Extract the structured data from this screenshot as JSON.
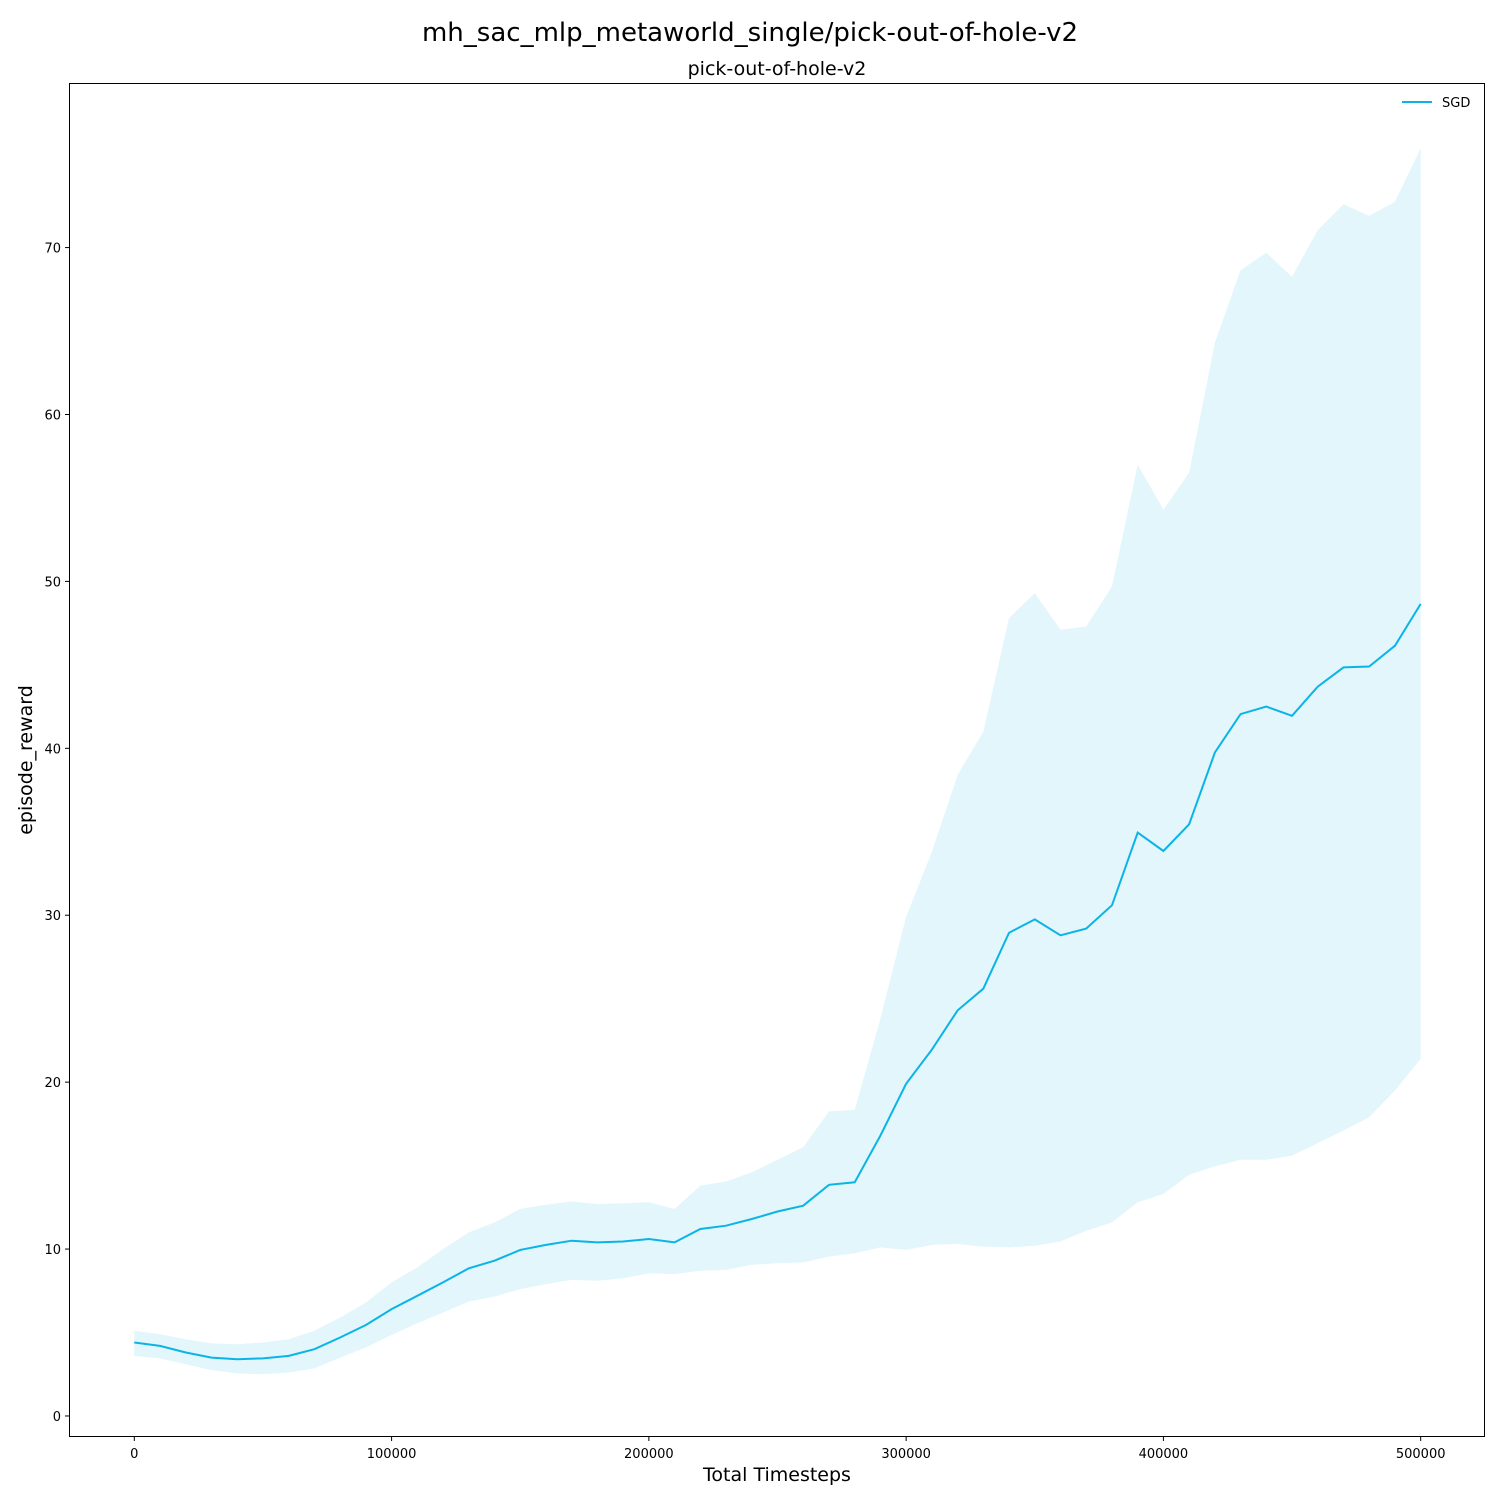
{
  "figure": {
    "suptitle": "mh_sac_mlp_metaworld_single/pick-out-of-hole-v2"
  },
  "chart_data": {
    "type": "line",
    "title": "pick-out-of-hole-v2",
    "xlabel": "Total Timesteps",
    "ylabel": "episode_reward",
    "xlim": [
      -25000,
      525000
    ],
    "ylim": [
      -1.2,
      79.8
    ],
    "xticks": [
      0,
      100000,
      200000,
      300000,
      400000,
      500000
    ],
    "yticks": [
      0,
      10,
      20,
      30,
      40,
      50,
      60,
      70
    ],
    "grid": false,
    "legend": {
      "placement": "top-right",
      "entries": [
        "SGD"
      ]
    },
    "series": [
      {
        "name": "SGD",
        "color": "#0ab4e6",
        "band_color": "#e3f6fc",
        "x": [
          0,
          10000,
          20000,
          30000,
          40000,
          50000,
          60000,
          70000,
          80000,
          90000,
          100000,
          110000,
          120000,
          130000,
          140000,
          150000,
          160000,
          170000,
          180000,
          190000,
          200000,
          210000,
          220000,
          230000,
          240000,
          250000,
          260000,
          270000,
          280000,
          290000,
          300000,
          310000,
          320000,
          330000,
          340000,
          350000,
          360000,
          370000,
          380000,
          390000,
          400000,
          410000,
          420000,
          430000,
          440000,
          450000,
          460000,
          470000,
          480000,
          490000,
          500000
        ],
        "y": [
          4.4,
          4.2,
          3.8,
          3.5,
          3.4,
          3.45,
          3.6,
          4.0,
          4.7,
          5.45,
          6.4,
          7.2,
          8.0,
          8.85,
          9.3,
          9.95,
          10.25,
          10.5,
          10.4,
          10.45,
          10.6,
          10.4,
          11.2,
          11.4,
          11.8,
          12.25,
          12.6,
          13.85,
          14.0,
          16.8,
          19.9,
          21.95,
          24.3,
          25.6,
          28.95,
          29.75,
          28.8,
          29.2,
          30.6,
          34.95,
          33.85,
          35.45,
          39.75,
          42.05,
          42.5,
          41.95,
          43.7,
          44.85,
          44.9,
          46.15,
          48.65
        ],
        "upper": [
          5.1,
          4.9,
          4.6,
          4.35,
          4.3,
          4.4,
          4.6,
          5.1,
          5.9,
          6.8,
          8.0,
          8.9,
          10.0,
          11.0,
          11.6,
          12.4,
          12.65,
          12.85,
          12.7,
          12.75,
          12.8,
          12.4,
          13.8,
          14.05,
          14.6,
          15.35,
          16.1,
          18.25,
          18.35,
          23.8,
          29.9,
          33.8,
          38.4,
          41.0,
          47.8,
          49.3,
          47.1,
          47.3,
          49.7,
          57.0,
          54.3,
          56.5,
          64.3,
          68.65,
          69.7,
          68.25,
          71.05,
          72.6,
          71.9,
          72.75,
          75.95
        ],
        "lower": [
          3.6,
          3.45,
          3.1,
          2.75,
          2.55,
          2.5,
          2.6,
          2.85,
          3.5,
          4.1,
          4.85,
          5.55,
          6.2,
          6.85,
          7.15,
          7.6,
          7.9,
          8.15,
          8.1,
          8.25,
          8.55,
          8.5,
          8.7,
          8.75,
          9.05,
          9.15,
          9.2,
          9.55,
          9.75,
          10.1,
          9.95,
          10.25,
          10.3,
          10.15,
          10.1,
          10.2,
          10.45,
          11.1,
          11.6,
          12.8,
          13.3,
          14.45,
          14.95,
          15.35,
          15.35,
          15.6,
          16.35,
          17.1,
          17.9,
          19.5,
          21.4
        ]
      }
    ]
  }
}
